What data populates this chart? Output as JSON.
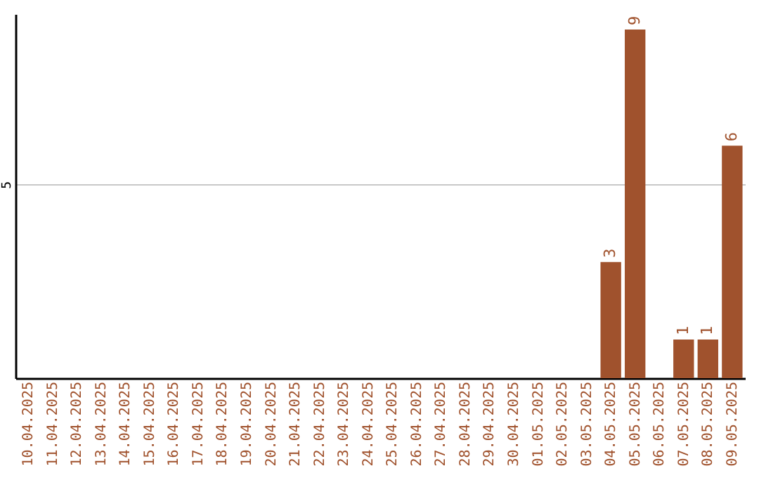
{
  "chart_data": {
    "type": "bar",
    "categories": [
      "10.04.2025",
      "11.04.2025",
      "12.04.2025",
      "13.04.2025",
      "14.04.2025",
      "15.04.2025",
      "16.04.2025",
      "17.04.2025",
      "18.04.2025",
      "19.04.2025",
      "20.04.2025",
      "21.04.2025",
      "22.04.2025",
      "23.04.2025",
      "24.04.2025",
      "25.04.2025",
      "26.04.2025",
      "27.04.2025",
      "28.04.2025",
      "29.04.2025",
      "30.04.2025",
      "01.05.2025",
      "02.05.2025",
      "03.05.2025",
      "04.05.2025",
      "05.05.2025",
      "06.05.2025",
      "07.05.2025",
      "08.05.2025",
      "09.05.2025"
    ],
    "values": [
      null,
      null,
      null,
      null,
      null,
      null,
      null,
      null,
      null,
      null,
      null,
      null,
      null,
      null,
      null,
      null,
      null,
      null,
      null,
      null,
      null,
      null,
      null,
      null,
      3,
      9,
      null,
      1,
      1,
      6
    ],
    "color": "#a0522d",
    "ylim": [
      0,
      9.4
    ],
    "yticks": [
      5
    ],
    "grid": "y",
    "data_labels": true
  }
}
